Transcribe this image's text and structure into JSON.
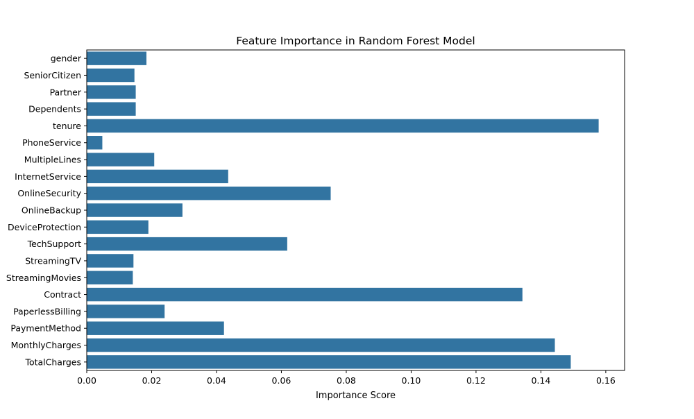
{
  "chart_data": {
    "type": "bar",
    "orientation": "horizontal",
    "title": "Feature Importance in Random Forest Model",
    "xlabel": "Importance Score",
    "ylabel": "",
    "categories": [
      "gender",
      "SeniorCitizen",
      "Partner",
      "Dependents",
      "tenure",
      "PhoneService",
      "MultipleLines",
      "InternetService",
      "OnlineSecurity",
      "OnlineBackup",
      "DeviceProtection",
      "TechSupport",
      "StreamingTV",
      "StreamingMovies",
      "Contract",
      "PaperlessBilling",
      "PaymentMethod",
      "MonthlyCharges",
      "TotalCharges"
    ],
    "values": [
      0.0184,
      0.0147,
      0.0151,
      0.0151,
      0.1578,
      0.0048,
      0.0208,
      0.0436,
      0.0752,
      0.0295,
      0.019,
      0.0618,
      0.0144,
      0.0142,
      0.1343,
      0.024,
      0.0423,
      0.1443,
      0.1492
    ],
    "xlim": [
      0,
      0.1658
    ],
    "xticks": [
      "0.00",
      "0.02",
      "0.04",
      "0.06",
      "0.08",
      "0.10",
      "0.12",
      "0.14",
      "0.16"
    ],
    "bar_color": "#3274a1",
    "grid": false,
    "legend": "none"
  }
}
